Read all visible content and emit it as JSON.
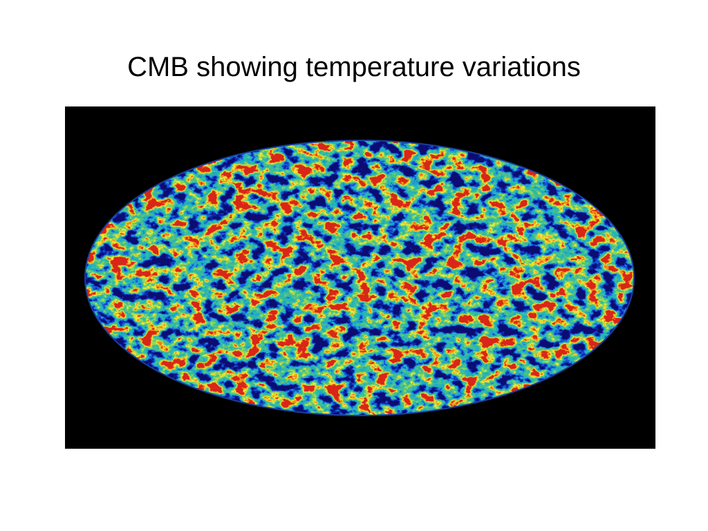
{
  "slide": {
    "title": "CMB showing temperature variations"
  }
}
